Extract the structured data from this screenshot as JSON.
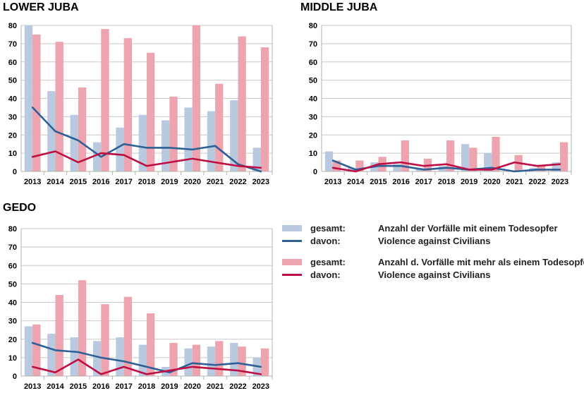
{
  "colors": {
    "bar_single": "#b9c9df",
    "bar_multi": "#eea4af",
    "line_single": "#2e6096",
    "line_multi": "#be0f44",
    "grid": "#c8c8c8"
  },
  "legend": {
    "items": [
      {
        "prefix": "gesamt:",
        "text": "Anzahl der Vorfälle mit einem Todesopfer",
        "kind": "bar",
        "color_key": "bar_single"
      },
      {
        "prefix": "davon:",
        "text": "Violence against Civilians",
        "kind": "line",
        "color_key": "line_single"
      },
      {
        "prefix": "gesamt:",
        "text": "Anzahl d. Vorfälle mit mehr als einem Todesopfer",
        "kind": "bar",
        "color_key": "bar_multi"
      },
      {
        "prefix": "davon:",
        "text": "Violence against Civilians",
        "kind": "line",
        "color_key": "line_multi"
      }
    ]
  },
  "chart_data": [
    {
      "type": "bar",
      "title": "LOWER JUBA",
      "categories": [
        "2013",
        "2014",
        "2015",
        "2016",
        "2017",
        "2018",
        "2019",
        "2020",
        "2021",
        "2022",
        "2023"
      ],
      "ylim": [
        0,
        80
      ],
      "yticks": [
        0,
        10,
        20,
        30,
        40,
        50,
        60,
        70,
        80
      ],
      "grid": true,
      "series": [
        {
          "name": "gesamt: Anzahl der Vorfälle mit einem Todesopfer",
          "kind": "bar",
          "values": [
            80,
            44,
            31,
            16,
            24,
            31,
            28,
            35,
            33,
            39,
            13
          ]
        },
        {
          "name": "gesamt: Anzahl d. Vorfälle mit mehr als einem Todesopfer",
          "kind": "bar",
          "values": [
            75,
            71,
            46,
            78,
            73,
            65,
            41,
            80,
            48,
            74,
            68
          ]
        },
        {
          "name": "davon: Violence against Civilians",
          "kind": "line",
          "values": [
            35,
            22,
            17,
            8,
            15,
            13,
            13,
            12,
            14,
            4,
            0
          ]
        },
        {
          "name": "davon: Violence against Civilians",
          "kind": "line",
          "values": [
            8,
            11,
            5,
            10,
            9,
            3,
            5,
            7,
            5,
            3,
            2
          ]
        }
      ]
    },
    {
      "type": "bar",
      "title": "MIDDLE JUBA",
      "categories": [
        "2013",
        "2014",
        "2015",
        "2016",
        "2017",
        "2018",
        "2019",
        "2020",
        "2021",
        "2022",
        "2023"
      ],
      "ylim": [
        0,
        80
      ],
      "yticks": [
        0,
        10,
        20,
        30,
        40,
        50,
        60,
        70,
        80
      ],
      "grid": true,
      "series": [
        {
          "name": "gesamt: Anzahl der Vorfälle mit einem Todesopfer",
          "kind": "bar",
          "values": [
            11,
            2,
            5,
            4,
            2,
            3,
            15,
            10,
            0,
            2,
            5
          ]
        },
        {
          "name": "gesamt: Anzahl d. Vorfälle mit mehr als einem Todesopfer",
          "kind": "bar",
          "values": [
            6,
            6,
            8,
            17,
            7,
            17,
            13,
            19,
            9,
            3,
            16
          ]
        },
        {
          "name": "davon: Violence against Civilians",
          "kind": "line",
          "values": [
            6,
            1,
            3,
            3,
            1,
            2,
            1,
            2,
            0,
            1,
            1
          ]
        },
        {
          "name": "davon: Violence against Civilians",
          "kind": "line",
          "values": [
            2,
            0,
            4,
            5,
            3,
            4,
            1,
            1,
            5,
            3,
            4
          ]
        }
      ]
    },
    {
      "type": "bar",
      "title": "GEDO",
      "categories": [
        "2013",
        "2014",
        "2015",
        "2016",
        "2017",
        "2018",
        "2019",
        "2020",
        "2021",
        "2022",
        "2023"
      ],
      "ylim": [
        0,
        80
      ],
      "yticks": [
        0,
        10,
        20,
        30,
        40,
        50,
        60,
        70,
        80
      ],
      "grid": true,
      "series": [
        {
          "name": "gesamt: Anzahl der Vorfälle mit einem Todesopfer",
          "kind": "bar",
          "values": [
            27,
            23,
            21,
            19,
            21,
            17,
            5,
            15,
            16,
            18,
            10
          ]
        },
        {
          "name": "gesamt: Anzahl d. Vorfälle mit mehr als einem Todesopfer",
          "kind": "bar",
          "values": [
            28,
            44,
            52,
            39,
            43,
            34,
            18,
            17,
            19,
            16,
            15
          ]
        },
        {
          "name": "davon: Violence against Civilians",
          "kind": "line",
          "values": [
            18,
            14,
            13,
            10,
            8,
            5,
            2,
            7,
            6,
            7,
            5
          ]
        },
        {
          "name": "davon: Violence against Civilians",
          "kind": "line",
          "values": [
            5,
            2,
            9,
            1,
            5,
            1,
            3,
            5,
            4,
            3,
            1
          ]
        }
      ]
    }
  ]
}
